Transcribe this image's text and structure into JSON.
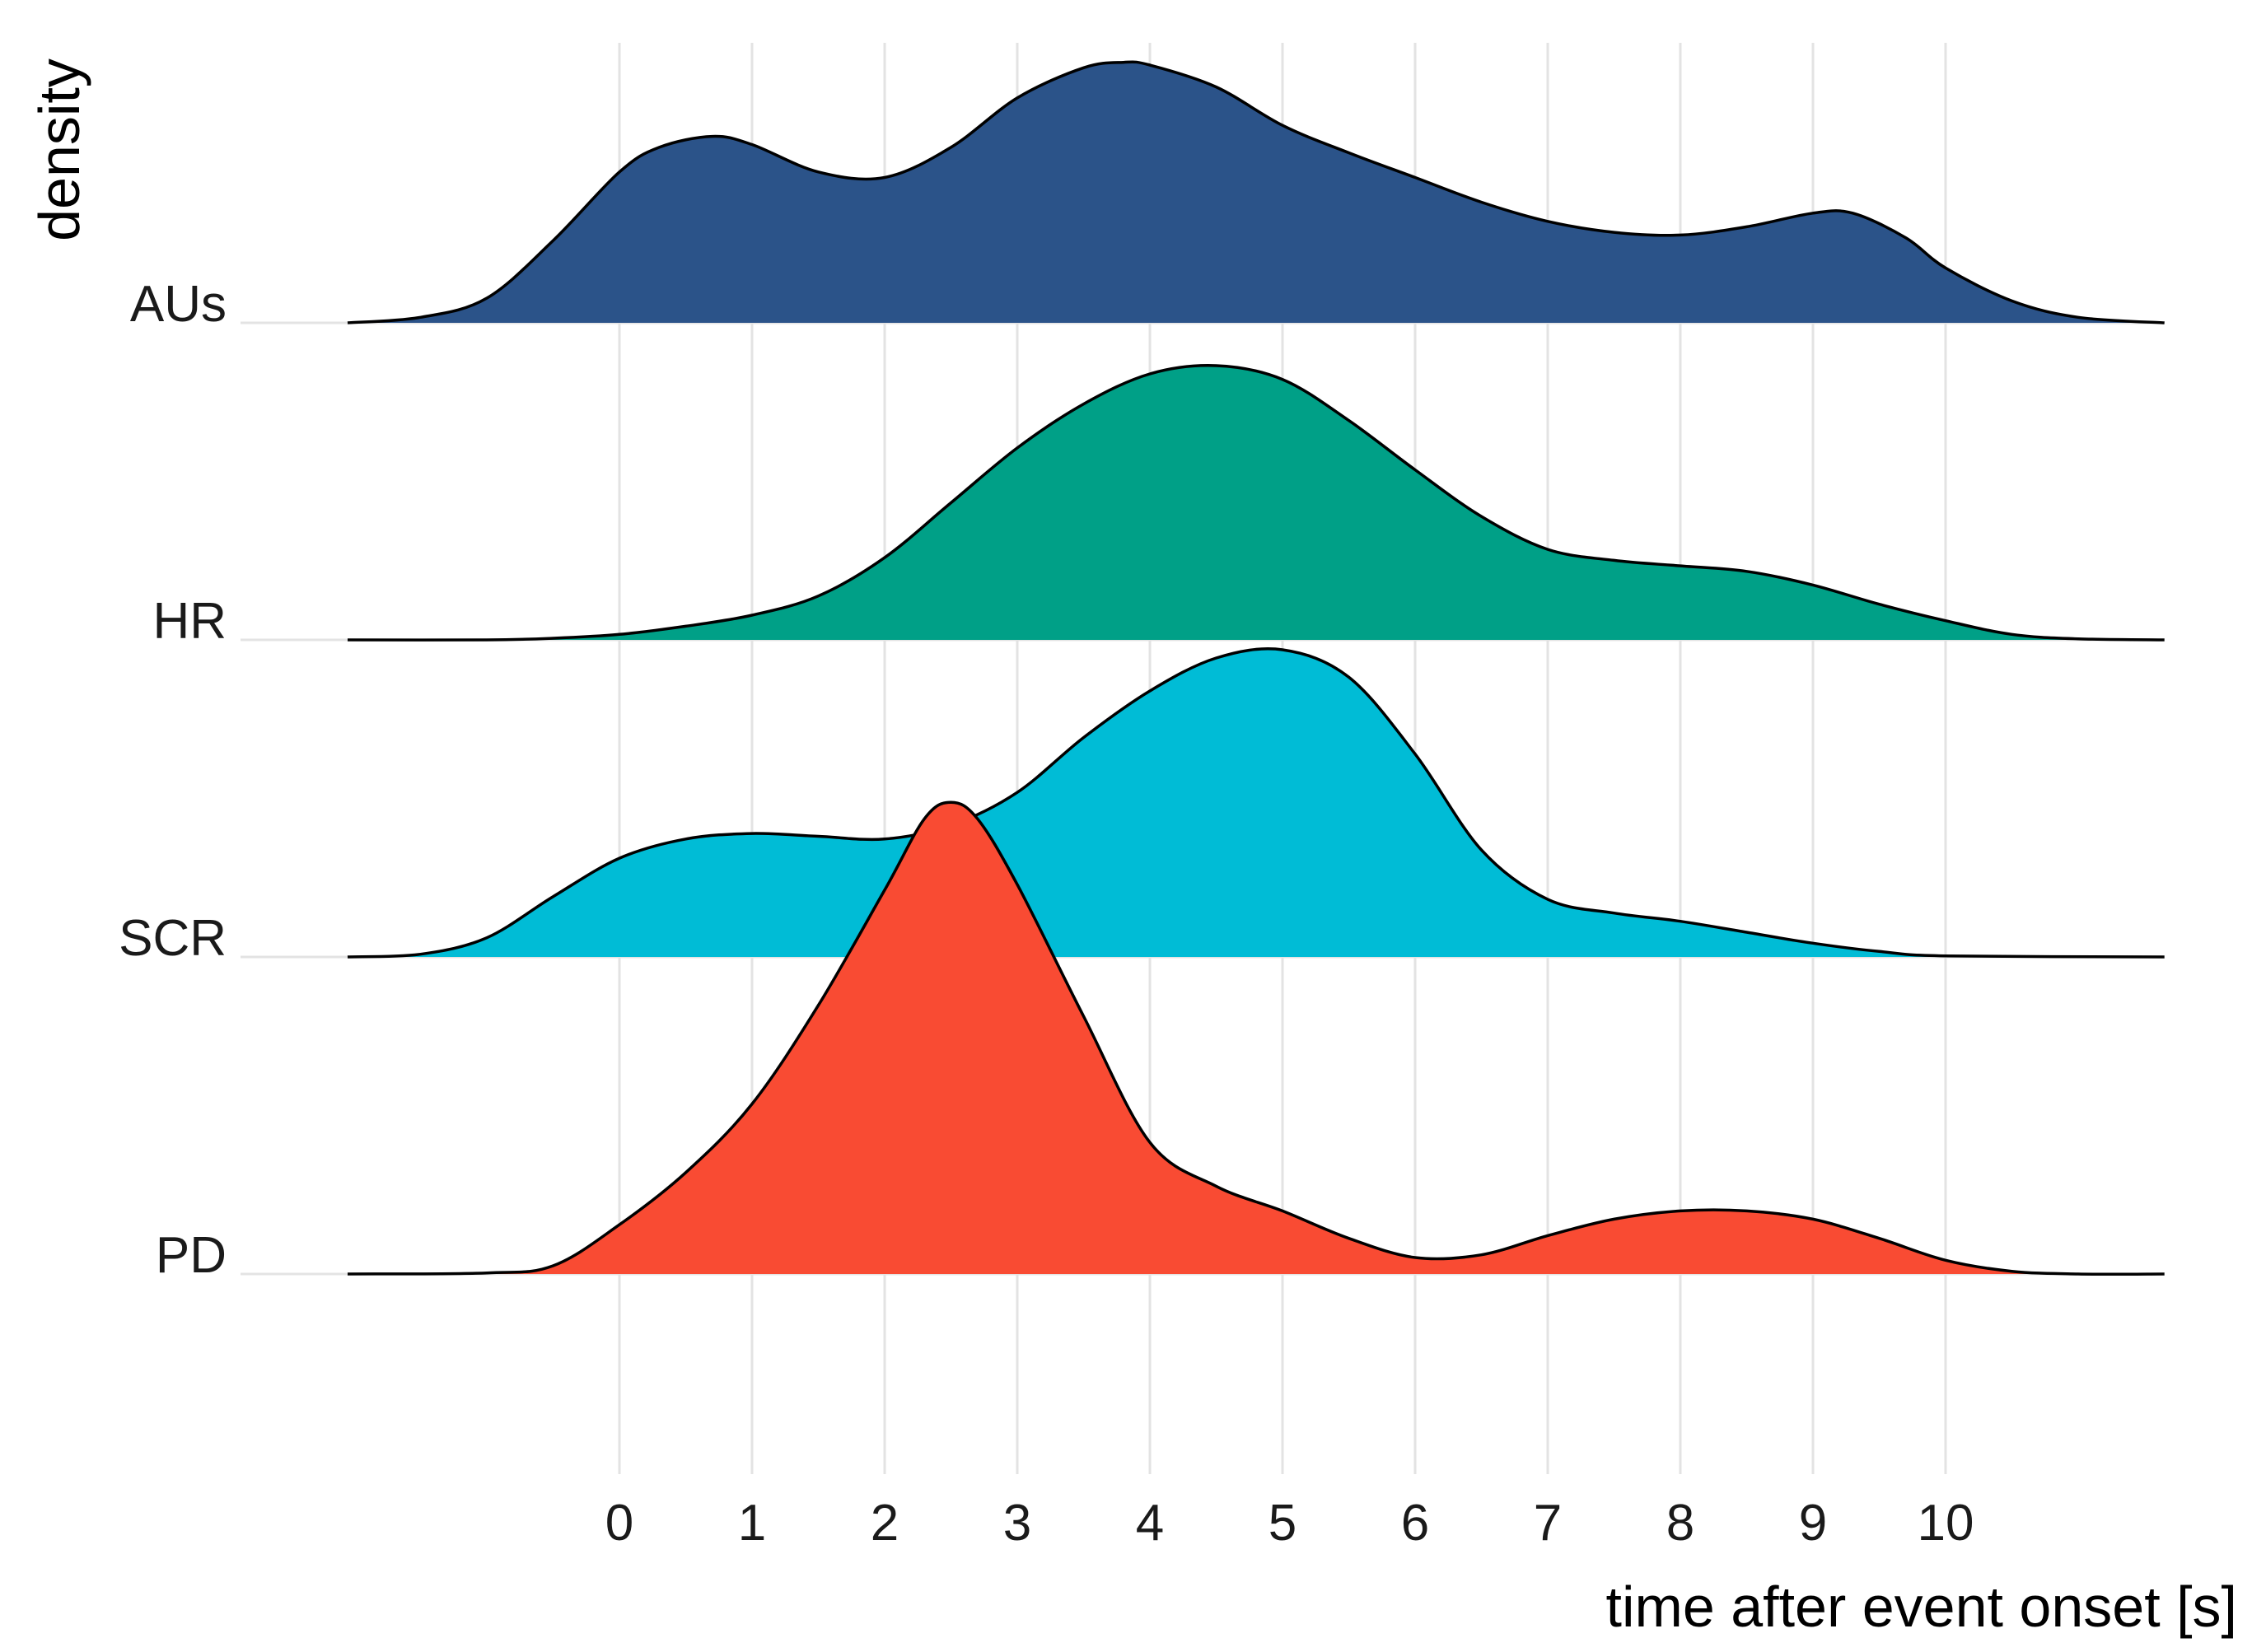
{
  "chart_data": {
    "type": "ridgeline",
    "xlabel": "time after event onset [s]",
    "ylabel": "density",
    "x_ticks": [
      0,
      1,
      2,
      3,
      4,
      5,
      6,
      7,
      8,
      9,
      10
    ],
    "xlim": [
      -2.05,
      11.65
    ],
    "grid": true,
    "legend": "none",
    "categories": [
      "AUs",
      "HR",
      "SCR",
      "PD"
    ],
    "series": [
      {
        "name": "AUs",
        "color": "#2b5389",
        "points": [
          [
            -2.05,
            0.0
          ],
          [
            -1.5,
            0.02
          ],
          [
            -1.0,
            0.09
          ],
          [
            -0.5,
            0.3
          ],
          [
            0.0,
            0.55
          ],
          [
            0.3,
            0.64
          ],
          [
            0.7,
            0.68
          ],
          [
            1.0,
            0.65
          ],
          [
            1.5,
            0.55
          ],
          [
            2.0,
            0.53
          ],
          [
            2.5,
            0.64
          ],
          [
            3.0,
            0.82
          ],
          [
            3.5,
            0.93
          ],
          [
            3.8,
            0.95
          ],
          [
            4.0,
            0.94
          ],
          [
            4.5,
            0.86
          ],
          [
            5.0,
            0.72
          ],
          [
            5.5,
            0.62
          ],
          [
            6.0,
            0.53
          ],
          [
            6.5,
            0.44
          ],
          [
            7.0,
            0.37
          ],
          [
            7.5,
            0.33
          ],
          [
            8.0,
            0.32
          ],
          [
            8.5,
            0.35
          ],
          [
            9.0,
            0.4
          ],
          [
            9.3,
            0.4
          ],
          [
            9.7,
            0.31
          ],
          [
            10.0,
            0.2
          ],
          [
            10.5,
            0.08
          ],
          [
            11.0,
            0.02
          ],
          [
            11.65,
            0.0
          ]
        ]
      },
      {
        "name": "HR",
        "color": "#00a087",
        "points": [
          [
            -2.05,
            0.0
          ],
          [
            -1.0,
            0.0
          ],
          [
            -0.5,
            0.006
          ],
          [
            0.0,
            0.02
          ],
          [
            0.5,
            0.05
          ],
          [
            1.0,
            0.09
          ],
          [
            1.5,
            0.16
          ],
          [
            2.0,
            0.3
          ],
          [
            2.5,
            0.5
          ],
          [
            3.0,
            0.7
          ],
          [
            3.5,
            0.86
          ],
          [
            4.0,
            0.97
          ],
          [
            4.5,
            1.0
          ],
          [
            5.0,
            0.95
          ],
          [
            5.5,
            0.8
          ],
          [
            6.0,
            0.62
          ],
          [
            6.5,
            0.45
          ],
          [
            7.0,
            0.33
          ],
          [
            7.5,
            0.29
          ],
          [
            8.0,
            0.27
          ],
          [
            8.5,
            0.25
          ],
          [
            9.0,
            0.2
          ],
          [
            9.5,
            0.13
          ],
          [
            10.0,
            0.07
          ],
          [
            10.5,
            0.02
          ],
          [
            11.0,
            0.004
          ],
          [
            11.65,
            0.0
          ]
        ]
      },
      {
        "name": "SCR",
        "color": "#00bcd6",
        "points": [
          [
            -2.05,
            0.0
          ],
          [
            -1.5,
            0.01
          ],
          [
            -1.0,
            0.07
          ],
          [
            -0.5,
            0.22
          ],
          [
            0.0,
            0.36
          ],
          [
            0.5,
            0.43
          ],
          [
            1.0,
            0.45
          ],
          [
            1.5,
            0.44
          ],
          [
            2.0,
            0.43
          ],
          [
            2.5,
            0.48
          ],
          [
            3.0,
            0.6
          ],
          [
            3.5,
            0.8
          ],
          [
            4.0,
            0.97
          ],
          [
            4.5,
            1.09
          ],
          [
            5.0,
            1.12
          ],
          [
            5.5,
            1.02
          ],
          [
            6.0,
            0.74
          ],
          [
            6.5,
            0.39
          ],
          [
            7.0,
            0.21
          ],
          [
            7.5,
            0.16
          ],
          [
            8.0,
            0.13
          ],
          [
            8.5,
            0.09
          ],
          [
            9.0,
            0.05
          ],
          [
            9.5,
            0.02
          ],
          [
            10.0,
            0.004
          ],
          [
            11.65,
            0.0
          ]
        ]
      },
      {
        "name": "PD",
        "color": "#f94b33",
        "points": [
          [
            -2.05,
            0.0
          ],
          [
            -1.0,
            0.004
          ],
          [
            -0.5,
            0.03
          ],
          [
            0.0,
            0.18
          ],
          [
            0.5,
            0.37
          ],
          [
            1.0,
            0.62
          ],
          [
            1.5,
            0.98
          ],
          [
            2.0,
            1.4
          ],
          [
            2.3,
            1.66
          ],
          [
            2.5,
            1.72
          ],
          [
            2.7,
            1.66
          ],
          [
            3.0,
            1.42
          ],
          [
            3.5,
            0.94
          ],
          [
            4.0,
            0.48
          ],
          [
            4.5,
            0.32
          ],
          [
            5.0,
            0.23
          ],
          [
            5.5,
            0.13
          ],
          [
            6.0,
            0.06
          ],
          [
            6.5,
            0.07
          ],
          [
            7.0,
            0.14
          ],
          [
            7.5,
            0.2
          ],
          [
            8.0,
            0.23
          ],
          [
            8.5,
            0.23
          ],
          [
            9.0,
            0.2
          ],
          [
            9.5,
            0.13
          ],
          [
            10.0,
            0.05
          ],
          [
            10.5,
            0.01
          ],
          [
            11.0,
            0.0
          ],
          [
            11.65,
            0.0
          ]
        ]
      }
    ]
  }
}
